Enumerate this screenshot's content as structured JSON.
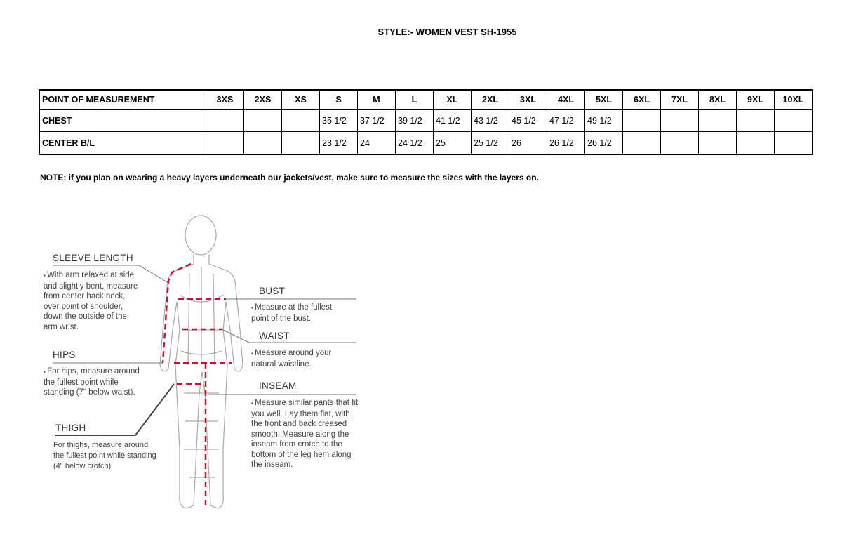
{
  "title": "STYLE:- WOMEN VEST SH-1955",
  "table": {
    "headers": [
      "POINT OF MEASUREMENT",
      "3XS",
      "2XS",
      "XS",
      "S",
      "M",
      "L",
      "XL",
      "2XL",
      "3XL",
      "4XL",
      "5XL",
      "6XL",
      "7XL",
      "8XL",
      "9XL",
      "10XL"
    ],
    "rows": [
      [
        "CHEST",
        "",
        "",
        "",
        "35 1/2",
        "37 1/2",
        "39 1/2",
        "41 1/2",
        "43 1/2",
        "45 1/2",
        "47 1/2",
        "49 1/2",
        "",
        "",
        "",
        "",
        ""
      ],
      [
        "CENTER B/L",
        "",
        "",
        "",
        "23 1/2",
        "24",
        "24 1/2",
        "25",
        "25 1/2",
        "26",
        "26 1/2",
        "26 1/2",
        "",
        "",
        "",
        "",
        ""
      ]
    ]
  },
  "note": "NOTE: if you plan on wearing a heavy layers underneath our jackets/vest, make sure to measure the sizes with the layers on.",
  "guide": {
    "sleeve": {
      "label": "SLEEVE LENGTH",
      "text": "With arm relaxed at side and slightly bent, measure from center back neck, over point of shoulder, down the outside of the arm wrist."
    },
    "hips": {
      "label": "HIPS",
      "text": "For hips, measure around the fullest point while standing (7\" below waist)."
    },
    "thigh": {
      "label": "THIGH",
      "text": "For thighs, measure around the fullest point while standing (4\" below crotch)"
    },
    "bust": {
      "label": "BUST",
      "text": "Measure at the fullest point of the bust."
    },
    "waist": {
      "label": "WAIST",
      "text": "Measure around your natural waistline."
    },
    "inseam": {
      "label": "INSEAM",
      "text": "Measure similar pants that fit you well. Lay them flat, with the front and back creased smooth. Measure along the inseam from crotch to the bottom of the leg hem along the inseam."
    }
  },
  "colors": {
    "measure_line": "#c8102e",
    "figure": "#999999"
  }
}
